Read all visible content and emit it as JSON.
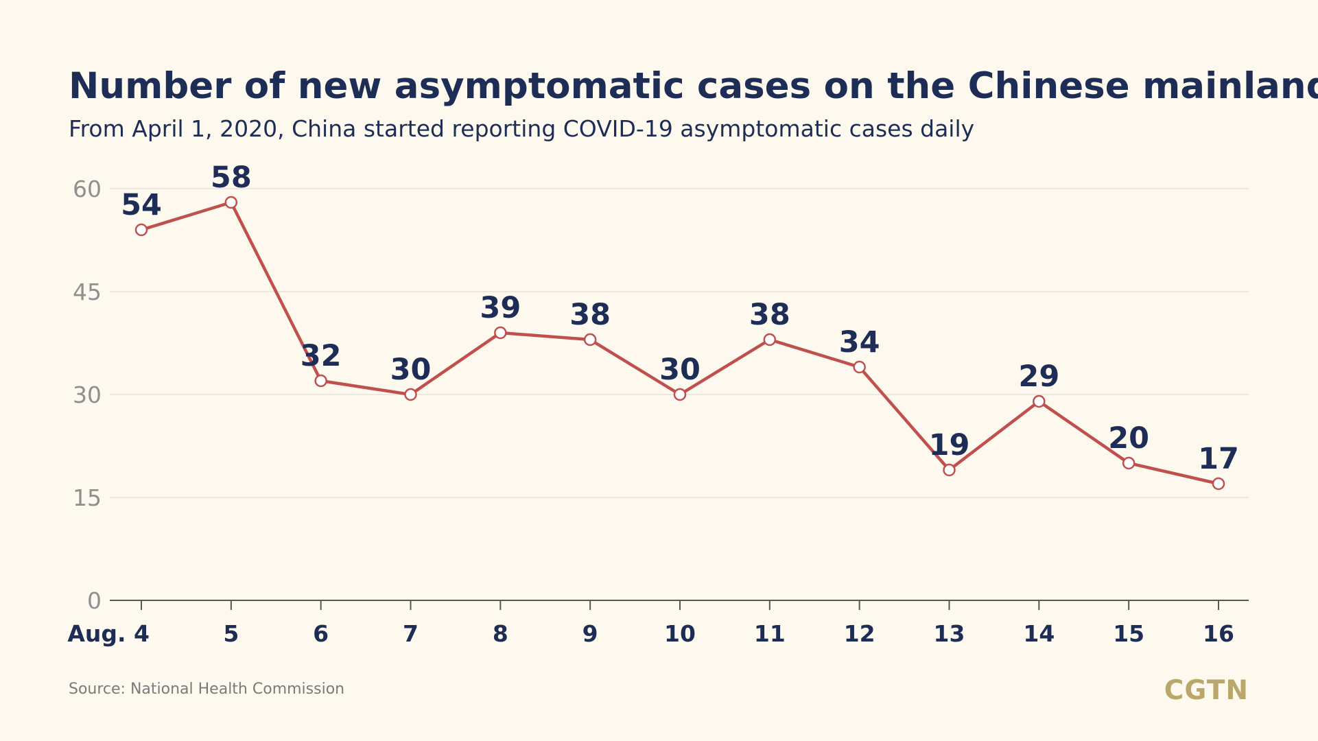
{
  "header": {
    "title": "Number of new asymptomatic cases on the Chinese mainland",
    "subtitle": "From April 1, 2020, China started reporting COVID-19 asymptomatic cases daily"
  },
  "footer": {
    "source": "Source: National Health Commission",
    "brand": "CGTN"
  },
  "colors": {
    "background": "#fdf9ee",
    "text": "#1d2d55",
    "line": "#c0504d",
    "brand": "#b9a86a"
  },
  "chart_data": {
    "type": "line",
    "title": "Number of new asymptomatic cases on the Chinese mainland",
    "subtitle": "From April 1, 2020, China started reporting COVID-19 asymptomatic cases daily",
    "categories": [
      "Aug. 4",
      "5",
      "6",
      "7",
      "8",
      "9",
      "10",
      "11",
      "12",
      "13",
      "14",
      "15",
      "16"
    ],
    "values": [
      54,
      58,
      32,
      30,
      39,
      38,
      30,
      38,
      34,
      19,
      29,
      20,
      17
    ],
    "ylim": [
      0,
      60
    ],
    "yticks": [
      0,
      15,
      30,
      45,
      60
    ],
    "grid": true,
    "legend": "none",
    "xlabel": "",
    "ylabel": ""
  }
}
